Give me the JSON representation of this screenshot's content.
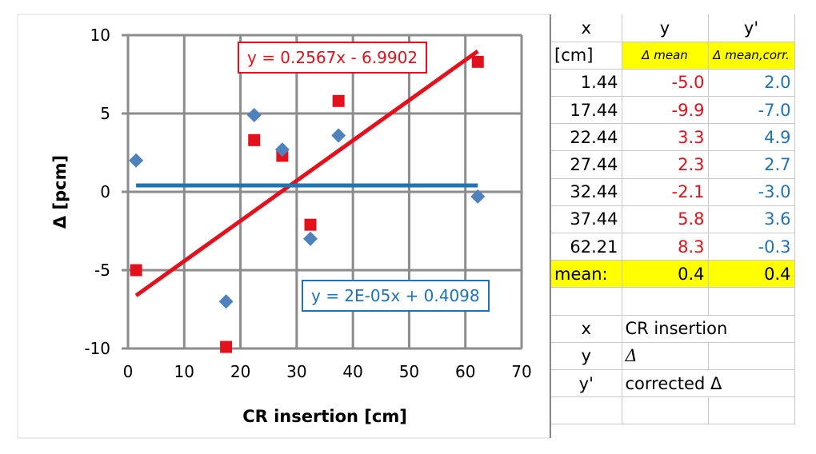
{
  "colors": {
    "red_series": "#e3111b",
    "blue_series": "#4f81bd",
    "blue_fit": "#1f74b5",
    "grid": "#8c8c8c",
    "highlight": "#ffff00"
  },
  "chart_data": {
    "type": "scatter",
    "xlabel": "CR insertion [cm]",
    "ylabel": "Δ [pcm]",
    "xlim": [
      0,
      70
    ],
    "ylim": [
      -10,
      10
    ],
    "xticks": [
      "0",
      "10",
      "20",
      "30",
      "40",
      "50",
      "60",
      "70"
    ],
    "yticks": [
      "10",
      "5",
      "0",
      "-5",
      "-10"
    ],
    "grid": true,
    "series": [
      {
        "marker": "square",
        "color": "#e3111b",
        "x": [
          1.44,
          17.44,
          22.44,
          27.44,
          32.44,
          37.44,
          62.21
        ],
        "y": [
          -5.0,
          -9.9,
          3.3,
          2.3,
          -2.1,
          5.8,
          8.3
        ]
      },
      {
        "marker": "diamond",
        "color": "#4f81bd",
        "x": [
          1.44,
          17.44,
          22.44,
          27.44,
          32.44,
          37.44,
          62.21
        ],
        "y": [
          2.0,
          -7.0,
          4.9,
          2.7,
          -3.0,
          3.6,
          -0.3
        ]
      }
    ],
    "trendlines": [
      {
        "slope": 0.2567,
        "intercept": -6.9902,
        "x_range": [
          1.44,
          62.21
        ],
        "color": "#e3111b",
        "label": "y = 0.2567x - 6.9902"
      },
      {
        "slope": 2e-05,
        "intercept": 0.4098,
        "x_range": [
          1.44,
          62.21
        ],
        "color": "#1f74b5",
        "label": "y = 2E-05x + 0.4098"
      }
    ]
  },
  "table": {
    "rows": [
      [
        {
          "t": "x",
          "a": "c"
        },
        {
          "t": "y",
          "a": "c"
        },
        {
          "t": "y'",
          "a": "c"
        }
      ],
      [
        {
          "t": "[cm]",
          "a": "l"
        },
        {
          "t": "Δ mean",
          "a": "c",
          "hl": true,
          "cls": "small-ital"
        },
        {
          "t": "Δ mean,corr.",
          "a": "c",
          "hl": true,
          "cls": "small-ital"
        }
      ],
      [
        {
          "t": "1.44",
          "a": "r"
        },
        {
          "t": "-5.0",
          "a": "r",
          "c": "red"
        },
        {
          "t": "2.0",
          "a": "r",
          "c": "blue"
        }
      ],
      [
        {
          "t": "17.44",
          "a": "r"
        },
        {
          "t": "-9.9",
          "a": "r",
          "c": "red"
        },
        {
          "t": "-7.0",
          "a": "r",
          "c": "blue"
        }
      ],
      [
        {
          "t": "22.44",
          "a": "r"
        },
        {
          "t": "3.3",
          "a": "r",
          "c": "red"
        },
        {
          "t": "4.9",
          "a": "r",
          "c": "blue"
        }
      ],
      [
        {
          "t": "27.44",
          "a": "r"
        },
        {
          "t": "2.3",
          "a": "r",
          "c": "red"
        },
        {
          "t": "2.7",
          "a": "r",
          "c": "blue"
        }
      ],
      [
        {
          "t": "32.44",
          "a": "r"
        },
        {
          "t": "-2.1",
          "a": "r",
          "c": "red"
        },
        {
          "t": "-3.0",
          "a": "r",
          "c": "blue"
        }
      ],
      [
        {
          "t": "37.44",
          "a": "r"
        },
        {
          "t": "5.8",
          "a": "r",
          "c": "red"
        },
        {
          "t": "3.6",
          "a": "r",
          "c": "blue"
        }
      ],
      [
        {
          "t": "62.21",
          "a": "r"
        },
        {
          "t": "8.3",
          "a": "r",
          "c": "red"
        },
        {
          "t": "-0.3",
          "a": "r",
          "c": "blue"
        }
      ],
      [
        {
          "t": "mean:",
          "a": "l",
          "hl": true
        },
        {
          "t": "0.4",
          "a": "r",
          "hl": true
        },
        {
          "t": "0.4",
          "a": "r",
          "hl": true
        }
      ],
      [
        {
          "t": "",
          "a": "c"
        },
        {
          "t": "",
          "a": "c"
        },
        {
          "t": "",
          "a": "c"
        }
      ],
      [
        {
          "t": "x",
          "a": "c"
        },
        {
          "t": "CR insertion",
          "a": "l",
          "span": 2
        }
      ],
      [
        {
          "t": "y",
          "a": "c"
        },
        {
          "t": "Δ",
          "a": "l",
          "cls": "ital"
        },
        {
          "t": "",
          "a": "c"
        }
      ],
      [
        {
          "t": "y'",
          "a": "c"
        },
        {
          "t": "corrected Δ",
          "a": "l",
          "span": 2
        }
      ],
      [
        {
          "t": "",
          "a": "c"
        },
        {
          "t": "",
          "a": "c"
        },
        {
          "t": "",
          "a": "c"
        }
      ]
    ]
  }
}
